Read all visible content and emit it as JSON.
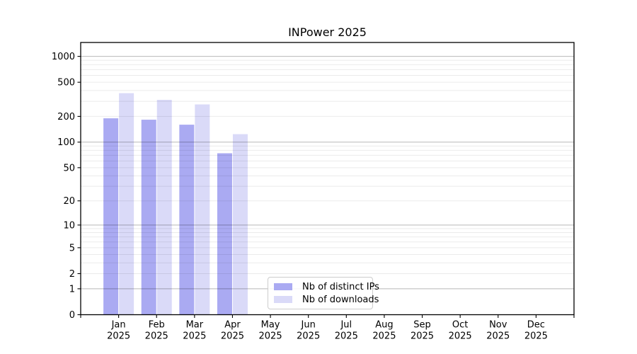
{
  "chart_data": {
    "type": "bar",
    "title": "INPower 2025",
    "x_categories": [
      "Jan",
      "Feb",
      "Mar",
      "Apr",
      "May",
      "Jun",
      "Jul",
      "Aug",
      "Sep",
      "Oct",
      "Nov",
      "Dec"
    ],
    "x_sublabel": "2025",
    "series": [
      {
        "name": "Nb of distinct IPs",
        "color": "#aaaaf2",
        "values": [
          190,
          183,
          160,
          74,
          0,
          0,
          0,
          0,
          0,
          0,
          0,
          0
        ]
      },
      {
        "name": "Nb of downloads",
        "color": "#dadaf8",
        "values": [
          373,
          312,
          276,
          124,
          0,
          0,
          0,
          0,
          0,
          0,
          0,
          0
        ]
      }
    ],
    "y_scale": "log10(1+y)",
    "y_ticks": [
      0,
      1,
      2,
      5,
      10,
      20,
      50,
      100,
      200,
      500,
      1000
    ],
    "y_major_gridlines": [
      1,
      10,
      100,
      1000
    ],
    "ylim": [
      0,
      1450
    ],
    "xlim": [
      0,
      13
    ],
    "grid": true,
    "legend_position": "lower-center",
    "colors": {
      "axis": "#000000",
      "text": "#000000",
      "major_grid": "rgba(0,0,0,0.28)",
      "minor_grid": "rgba(0,0,0,0.08)",
      "background": "#ffffff"
    }
  }
}
